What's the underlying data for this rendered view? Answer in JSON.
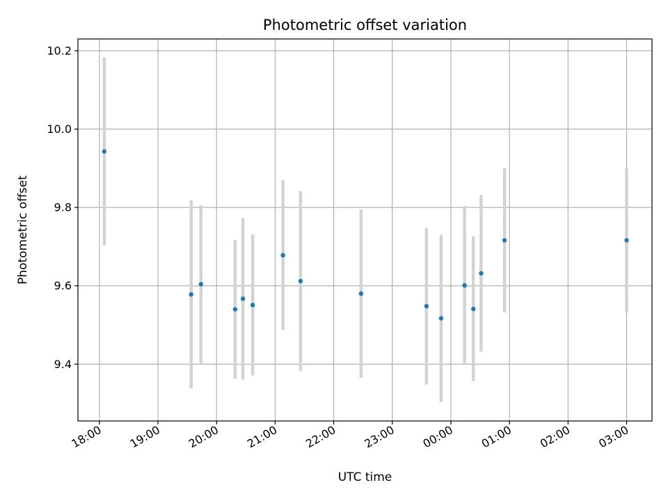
{
  "chart_data": {
    "type": "scatter",
    "title": "Photometric offset variation",
    "xlabel": "UTC time",
    "ylabel": "Photometric offset",
    "x_unit": "UTC time (HH:MM), night spanning midnight",
    "x_ticks": [
      "18:00",
      "19:00",
      "20:00",
      "21:00",
      "22:00",
      "23:00",
      "00:00",
      "01:00",
      "02:00",
      "03:00"
    ],
    "xlim": [
      "17:38",
      "03:26"
    ],
    "y_ticks": [
      "9.4",
      "9.6",
      "9.8",
      "10.0",
      "10.2"
    ],
    "ylim": [
      9.255,
      10.23
    ],
    "grid": true,
    "marker_color": "#1f77b4",
    "errorbar_color": "#d3d3d3",
    "points": [
      {
        "x": "18:05",
        "y": 9.943,
        "y_low": 9.703,
        "y_high": 10.183
      },
      {
        "x": "19:34",
        "y": 9.578,
        "y_low": 9.338,
        "y_high": 9.818
      },
      {
        "x": "19:44",
        "y": 9.604,
        "y_low": 9.402,
        "y_high": 9.806
      },
      {
        "x": "20:19",
        "y": 9.54,
        "y_low": 9.363,
        "y_high": 9.717
      },
      {
        "x": "20:27",
        "y": 9.567,
        "y_low": 9.361,
        "y_high": 9.773
      },
      {
        "x": "20:37",
        "y": 9.551,
        "y_low": 9.371,
        "y_high": 9.731
      },
      {
        "x": "21:08",
        "y": 9.678,
        "y_low": 9.487,
        "y_high": 9.87
      },
      {
        "x": "21:26",
        "y": 9.612,
        "y_low": 9.382,
        "y_high": 9.842
      },
      {
        "x": "22:28",
        "y": 9.58,
        "y_low": 9.365,
        "y_high": 9.795
      },
      {
        "x": "23:35",
        "y": 9.548,
        "y_low": 9.348,
        "y_high": 9.748
      },
      {
        "x": "23:50",
        "y": 9.517,
        "y_low": 9.303,
        "y_high": 9.73
      },
      {
        "x": "00:14",
        "y": 9.601,
        "y_low": 9.398,
        "y_high": 9.804
      },
      {
        "x": "00:23",
        "y": 9.541,
        "y_low": 9.357,
        "y_high": 9.726
      },
      {
        "x": "00:31",
        "y": 9.632,
        "y_low": 9.432,
        "y_high": 9.832
      },
      {
        "x": "00:55",
        "y": 9.716,
        "y_low": 9.532,
        "y_high": 9.9
      },
      {
        "x": "03:00",
        "y": 9.716,
        "y_low": 9.532,
        "y_high": 9.9
      }
    ]
  }
}
